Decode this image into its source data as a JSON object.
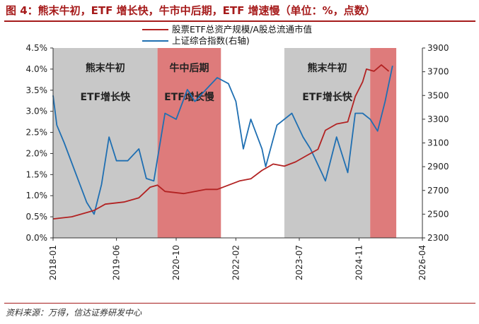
{
  "header": {
    "title": "图 4：熊末牛初，ETF 增长快，牛市中后期，ETF 增速慢（单位：%，点数）"
  },
  "footer": {
    "source": "资料来源：万得，信达证券研发中心"
  },
  "colors": {
    "ratio_line": "#b22222",
    "index_line": "#1f6fb2",
    "gray_band": "#c8c8c8",
    "red_band": "#de7b7b",
    "axis": "#333333",
    "title": "#a61b1b"
  },
  "chart_data": {
    "type": "line",
    "xlim": [
      "2018-01",
      "2026-04"
    ],
    "x_ticks": [
      "2018-01",
      "2019-06",
      "2020-10",
      "2022-02",
      "2023-07",
      "2024-11",
      "2026-04"
    ],
    "ylim_left": [
      0,
      4.5
    ],
    "y_ticks_left": [
      "0.0%",
      "0.5%",
      "1.0%",
      "1.5%",
      "2.0%",
      "2.5%",
      "3.0%",
      "3.5%",
      "4.0%",
      "4.5%"
    ],
    "ylim_right": [
      2300,
      3900
    ],
    "y_ticks_right": [
      "2300",
      "2500",
      "2700",
      "2900",
      "3100",
      "3300",
      "3500",
      "3700",
      "3900"
    ],
    "grid": false,
    "legend_position": "top-center",
    "shaded_regions": [
      {
        "start": "2018-01",
        "end": "2020-05",
        "color": "gray",
        "labels": [
          "熊末牛初",
          "ETF增长快"
        ]
      },
      {
        "start": "2020-05",
        "end": "2021-10",
        "color": "red",
        "labels": [
          "牛中后期",
          "ETF增长慢"
        ]
      },
      {
        "start": "2023-03",
        "end": "2025-02",
        "color": "gray",
        "labels": [
          "熊末牛初",
          "ETF增长快"
        ]
      },
      {
        "start": "2025-02",
        "end": "2025-09",
        "color": "red",
        "labels": []
      }
    ],
    "series": [
      {
        "name": "股票ETF总资产规模/A股总流通市值",
        "axis": "left",
        "x": [
          "2018-01",
          "2018-06",
          "2018-12",
          "2019-03",
          "2019-08",
          "2019-12",
          "2020-03",
          "2020-05",
          "2020-07",
          "2020-12",
          "2021-03",
          "2021-06",
          "2021-09",
          "2021-12",
          "2022-03",
          "2022-06",
          "2022-09",
          "2022-12",
          "2023-03",
          "2023-06",
          "2023-09",
          "2023-12",
          "2024-02",
          "2024-05",
          "2024-08",
          "2024-10",
          "2024-12",
          "2025-01",
          "2025-03",
          "2025-05",
          "2025-07"
        ],
        "values": [
          0.45,
          0.5,
          0.65,
          0.8,
          0.85,
          0.95,
          1.2,
          1.25,
          1.1,
          1.05,
          1.1,
          1.15,
          1.15,
          1.25,
          1.35,
          1.4,
          1.6,
          1.75,
          1.7,
          1.8,
          1.95,
          2.1,
          2.55,
          2.7,
          2.75,
          3.35,
          3.7,
          4.0,
          3.95,
          4.1,
          3.95
        ]
      },
      {
        "name": "上证综合指数(右轴)",
        "axis": "right",
        "x": [
          "2018-01",
          "2018-02",
          "2018-04",
          "2018-07",
          "2018-10",
          "2018-12",
          "2019-02",
          "2019-04",
          "2019-06",
          "2019-09",
          "2019-12",
          "2020-02",
          "2020-04",
          "2020-07",
          "2020-10",
          "2021-01",
          "2021-03",
          "2021-06",
          "2021-09",
          "2021-12",
          "2022-02",
          "2022-04",
          "2022-06",
          "2022-09",
          "2022-10",
          "2023-01",
          "2023-05",
          "2023-08",
          "2023-10",
          "2024-01",
          "2024-02",
          "2024-05",
          "2024-08",
          "2024-10",
          "2024-12",
          "2025-02",
          "2025-04",
          "2025-06",
          "2025-08"
        ],
        "values": [
          3500,
          3250,
          3100,
          2850,
          2600,
          2500,
          2750,
          3150,
          2950,
          2950,
          3050,
          2800,
          2780,
          3350,
          3300,
          3550,
          3450,
          3550,
          3650,
          3600,
          3450,
          3050,
          3300,
          3050,
          2900,
          3250,
          3350,
          3150,
          3050,
          2850,
          2780,
          3150,
          2850,
          3350,
          3350,
          3300,
          3200,
          3450,
          3750
        ]
      }
    ]
  }
}
